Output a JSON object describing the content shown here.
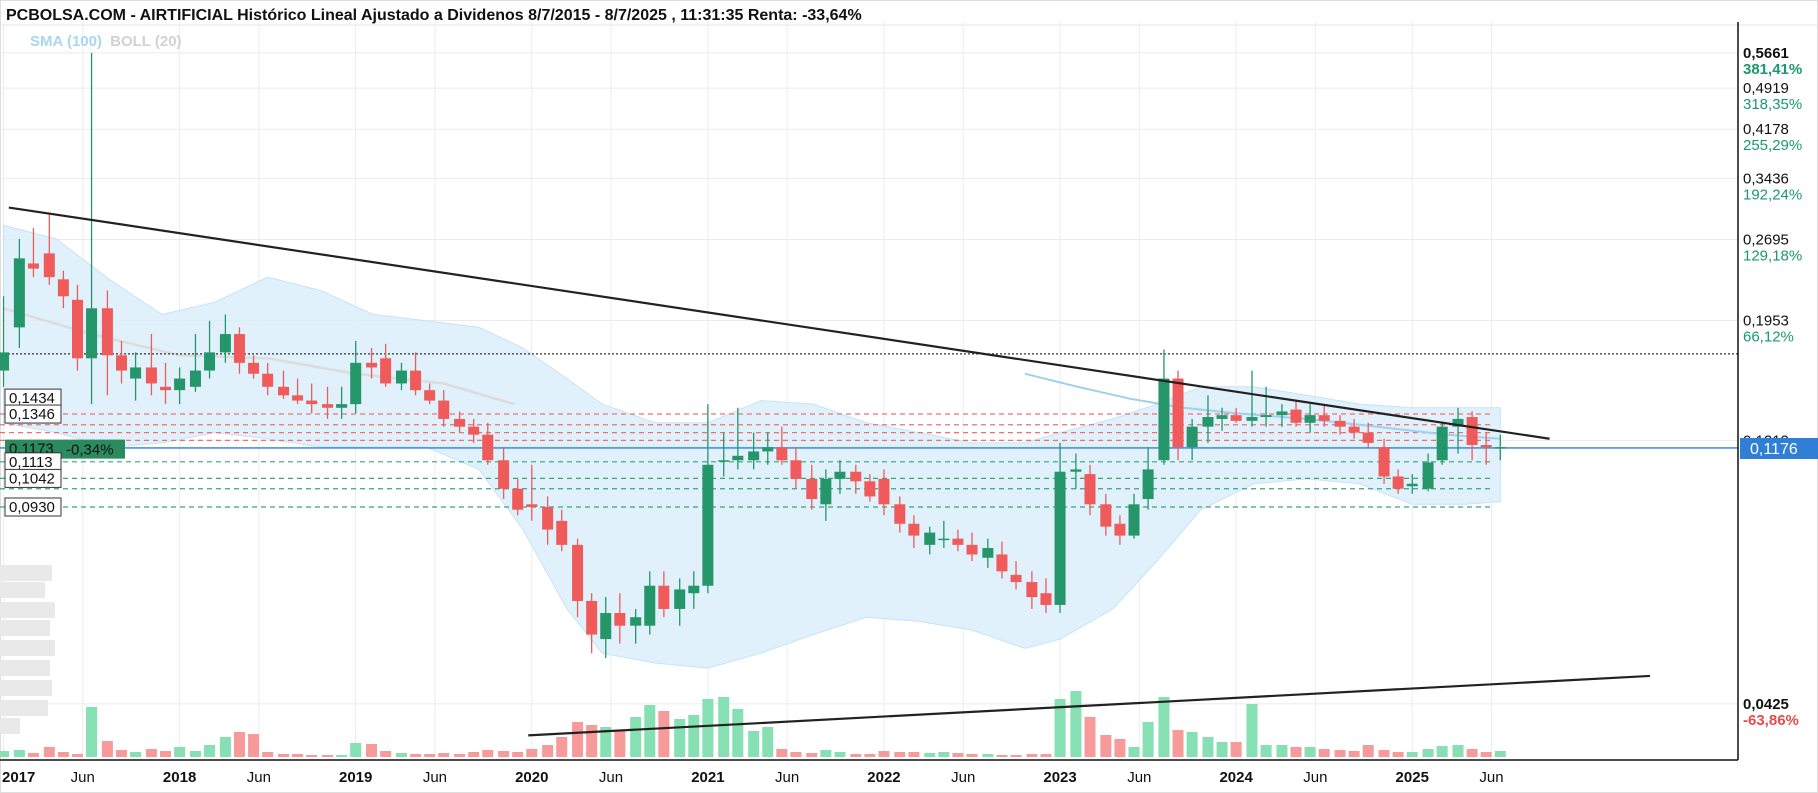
{
  "header": {
    "title": "PCBOLSA.COM - AIRTIFICIAL Histórico Lineal Ajustado a Dividenos 8/7/2015 - 8/7/2025 , 11:31:35 Renta: -33,64%",
    "legend_sma": "SMA (100)",
    "legend_boll": "BOLL (20)"
  },
  "chart_data": {
    "type": "candlestick",
    "y_scale": "log",
    "ylim": [
      0.034,
      0.64
    ],
    "xlim": [
      2016.98,
      2026.85
    ],
    "y_ticks": [
      {
        "value": "0,5661",
        "pct": "381,41%",
        "pct_color": "#1a9a6c",
        "bold": true
      },
      {
        "value": "0,4919",
        "pct": "318,35%",
        "pct_color": "#1a9a6c"
      },
      {
        "value": "0,4178",
        "pct": "255,29%",
        "pct_color": "#1a9a6c"
      },
      {
        "value": "0,3436",
        "pct": "192,24%",
        "pct_color": "#1a9a6c"
      },
      {
        "value": "0,2695",
        "pct": "129,18%",
        "pct_color": "#1a9a6c"
      },
      {
        "value": "0,1953",
        "pct": "66,12%",
        "pct_color": "#1a9a6c"
      },
      {
        "value": "0,1212",
        "pct": "",
        "pct_color": "#1a9a6c"
      },
      {
        "value": "0,0425",
        "pct": "-63,86%",
        "pct_color": "#e84b4b",
        "bold": true
      }
    ],
    "x_ticks": [
      {
        "x": 2017.0,
        "label": "2017",
        "year": true
      },
      {
        "x": 2017.45,
        "label": "Jun",
        "year": false
      },
      {
        "x": 2018.0,
        "label": "2018",
        "year": true
      },
      {
        "x": 2018.45,
        "label": "Jun",
        "year": false
      },
      {
        "x": 2019.0,
        "label": "2019",
        "year": true
      },
      {
        "x": 2019.45,
        "label": "Jun",
        "year": false
      },
      {
        "x": 2020.0,
        "label": "2020",
        "year": true
      },
      {
        "x": 2020.45,
        "label": "Jun",
        "year": false
      },
      {
        "x": 2021.0,
        "label": "2021",
        "year": true
      },
      {
        "x": 2021.45,
        "label": "Jun",
        "year": false
      },
      {
        "x": 2022.0,
        "label": "2022",
        "year": true
      },
      {
        "x": 2022.45,
        "label": "Jun",
        "year": false
      },
      {
        "x": 2023.0,
        "label": "2023",
        "year": true
      },
      {
        "x": 2023.45,
        "label": "Jun",
        "year": false
      },
      {
        "x": 2024.0,
        "label": "2024",
        "year": true
      },
      {
        "x": 2024.45,
        "label": "Jun",
        "year": false
      },
      {
        "x": 2025.0,
        "label": "2025",
        "year": true
      },
      {
        "x": 2025.45,
        "label": "Jun",
        "year": false
      }
    ],
    "last_price": "0,1176",
    "left_labels": {
      "l1": "0,1434",
      "l2": "0,1346",
      "l3": "0,1173",
      "change": "-0,34%",
      "l4": "0,1113",
      "l5": "0,1042",
      "l6": "0,0930"
    },
    "dotted_line": 0.171,
    "red_dashed_levels": [
      0.1346,
      0.129,
      0.125,
      0.1212
    ],
    "green_dashed_levels": [
      0.1113,
      0.1042,
      0.1,
      0.093
    ],
    "trendlines": [
      {
        "x1": 2017.03,
        "y1": 0.306,
        "x2": 2025.78,
        "y2": 0.122
      },
      {
        "x1": 2019.98,
        "y1": 0.0375,
        "x2": 2026.35,
        "y2": 0.0475
      }
    ],
    "candles": [
      {
        "x": 2017.0,
        "o": 0.16,
        "h": 0.215,
        "l": 0.15,
        "c": 0.172
      },
      {
        "x": 2017.09,
        "o": 0.19,
        "h": 0.27,
        "l": 0.175,
        "c": 0.25
      },
      {
        "x": 2017.17,
        "o": 0.245,
        "h": 0.282,
        "l": 0.232,
        "c": 0.24
      },
      {
        "x": 2017.26,
        "o": 0.255,
        "h": 0.3,
        "l": 0.225,
        "c": 0.232
      },
      {
        "x": 2017.34,
        "o": 0.23,
        "h": 0.238,
        "l": 0.205,
        "c": 0.215
      },
      {
        "x": 2017.42,
        "o": 0.212,
        "h": 0.225,
        "l": 0.16,
        "c": 0.168
      },
      {
        "x": 2017.5,
        "o": 0.168,
        "h": 0.566,
        "l": 0.14,
        "c": 0.205
      },
      {
        "x": 2017.59,
        "o": 0.205,
        "h": 0.22,
        "l": 0.145,
        "c": 0.17
      },
      {
        "x": 2017.67,
        "o": 0.17,
        "h": 0.18,
        "l": 0.152,
        "c": 0.16
      },
      {
        "x": 2017.75,
        "o": 0.155,
        "h": 0.172,
        "l": 0.142,
        "c": 0.162
      },
      {
        "x": 2017.84,
        "o": 0.162,
        "h": 0.185,
        "l": 0.145,
        "c": 0.152
      },
      {
        "x": 2017.92,
        "o": 0.15,
        "h": 0.165,
        "l": 0.14,
        "c": 0.148
      },
      {
        "x": 2018.0,
        "o": 0.148,
        "h": 0.162,
        "l": 0.14,
        "c": 0.155
      },
      {
        "x": 2018.09,
        "o": 0.15,
        "h": 0.185,
        "l": 0.147,
        "c": 0.16
      },
      {
        "x": 2018.17,
        "o": 0.16,
        "h": 0.195,
        "l": 0.155,
        "c": 0.172
      },
      {
        "x": 2018.26,
        "o": 0.172,
        "h": 0.2,
        "l": 0.165,
        "c": 0.185
      },
      {
        "x": 2018.34,
        "o": 0.185,
        "h": 0.19,
        "l": 0.158,
        "c": 0.165
      },
      {
        "x": 2018.42,
        "o": 0.165,
        "h": 0.17,
        "l": 0.155,
        "c": 0.158
      },
      {
        "x": 2018.5,
        "o": 0.158,
        "h": 0.165,
        "l": 0.145,
        "c": 0.15
      },
      {
        "x": 2018.59,
        "o": 0.15,
        "h": 0.16,
        "l": 0.143,
        "c": 0.145
      },
      {
        "x": 2018.67,
        "o": 0.145,
        "h": 0.155,
        "l": 0.14,
        "c": 0.142
      },
      {
        "x": 2018.75,
        "o": 0.142,
        "h": 0.152,
        "l": 0.135,
        "c": 0.14
      },
      {
        "x": 2018.84,
        "o": 0.14,
        "h": 0.15,
        "l": 0.132,
        "c": 0.138
      },
      {
        "x": 2018.92,
        "o": 0.138,
        "h": 0.15,
        "l": 0.132,
        "c": 0.14
      },
      {
        "x": 2019.0,
        "o": 0.14,
        "h": 0.18,
        "l": 0.135,
        "c": 0.165
      },
      {
        "x": 2019.09,
        "o": 0.165,
        "h": 0.175,
        "l": 0.155,
        "c": 0.162
      },
      {
        "x": 2019.17,
        "o": 0.168,
        "h": 0.178,
        "l": 0.15,
        "c": 0.152
      },
      {
        "x": 2019.26,
        "o": 0.152,
        "h": 0.165,
        "l": 0.148,
        "c": 0.16
      },
      {
        "x": 2019.34,
        "o": 0.16,
        "h": 0.172,
        "l": 0.145,
        "c": 0.148
      },
      {
        "x": 2019.42,
        "o": 0.148,
        "h": 0.152,
        "l": 0.14,
        "c": 0.142
      },
      {
        "x": 2019.5,
        "o": 0.142,
        "h": 0.148,
        "l": 0.128,
        "c": 0.132
      },
      {
        "x": 2019.59,
        "o": 0.132,
        "h": 0.136,
        "l": 0.125,
        "c": 0.128
      },
      {
        "x": 2019.67,
        "o": 0.128,
        "h": 0.132,
        "l": 0.12,
        "c": 0.124
      },
      {
        "x": 2019.75,
        "o": 0.124,
        "h": 0.13,
        "l": 0.11,
        "c": 0.112
      },
      {
        "x": 2019.84,
        "o": 0.112,
        "h": 0.118,
        "l": 0.096,
        "c": 0.1
      },
      {
        "x": 2019.92,
        "o": 0.1,
        "h": 0.104,
        "l": 0.09,
        "c": 0.092
      },
      {
        "x": 2020.0,
        "o": 0.094,
        "h": 0.11,
        "l": 0.088,
        "c": 0.093
      },
      {
        "x": 2020.09,
        "o": 0.093,
        "h": 0.097,
        "l": 0.08,
        "c": 0.085
      },
      {
        "x": 2020.17,
        "o": 0.088,
        "h": 0.092,
        "l": 0.078,
        "c": 0.08
      },
      {
        "x": 2020.26,
        "o": 0.08,
        "h": 0.082,
        "l": 0.06,
        "c": 0.064
      },
      {
        "x": 2020.34,
        "o": 0.064,
        "h": 0.066,
        "l": 0.052,
        "c": 0.056
      },
      {
        "x": 2020.42,
        "o": 0.055,
        "h": 0.065,
        "l": 0.051,
        "c": 0.061
      },
      {
        "x": 2020.5,
        "o": 0.061,
        "h": 0.066,
        "l": 0.054,
        "c": 0.058
      },
      {
        "x": 2020.59,
        "o": 0.058,
        "h": 0.062,
        "l": 0.054,
        "c": 0.06
      },
      {
        "x": 2020.67,
        "o": 0.058,
        "h": 0.072,
        "l": 0.056,
        "c": 0.068
      },
      {
        "x": 2020.75,
        "o": 0.068,
        "h": 0.072,
        "l": 0.06,
        "c": 0.062
      },
      {
        "x": 2020.84,
        "o": 0.062,
        "h": 0.07,
        "l": 0.058,
        "c": 0.067
      },
      {
        "x": 2020.92,
        "o": 0.066,
        "h": 0.072,
        "l": 0.062,
        "c": 0.068
      },
      {
        "x": 2021.0,
        "o": 0.068,
        "h": 0.14,
        "l": 0.066,
        "c": 0.11
      },
      {
        "x": 2021.09,
        "o": 0.112,
        "h": 0.125,
        "l": 0.105,
        "c": 0.112
      },
      {
        "x": 2021.17,
        "o": 0.112,
        "h": 0.138,
        "l": 0.108,
        "c": 0.114
      },
      {
        "x": 2021.26,
        "o": 0.112,
        "h": 0.125,
        "l": 0.108,
        "c": 0.116
      },
      {
        "x": 2021.34,
        "o": 0.116,
        "h": 0.125,
        "l": 0.11,
        "c": 0.118
      },
      {
        "x": 2021.42,
        "o": 0.118,
        "h": 0.128,
        "l": 0.11,
        "c": 0.112
      },
      {
        "x": 2021.5,
        "o": 0.112,
        "h": 0.118,
        "l": 0.1,
        "c": 0.104
      },
      {
        "x": 2021.59,
        "o": 0.104,
        "h": 0.11,
        "l": 0.092,
        "c": 0.096
      },
      {
        "x": 2021.67,
        "o": 0.094,
        "h": 0.108,
        "l": 0.088,
        "c": 0.104
      },
      {
        "x": 2021.75,
        "o": 0.104,
        "h": 0.112,
        "l": 0.098,
        "c": 0.107
      },
      {
        "x": 2021.84,
        "o": 0.107,
        "h": 0.11,
        "l": 0.098,
        "c": 0.103
      },
      {
        "x": 2021.92,
        "o": 0.103,
        "h": 0.106,
        "l": 0.095,
        "c": 0.097
      },
      {
        "x": 2022.0,
        "o": 0.104,
        "h": 0.108,
        "l": 0.09,
        "c": 0.094
      },
      {
        "x": 2022.09,
        "o": 0.094,
        "h": 0.097,
        "l": 0.084,
        "c": 0.087
      },
      {
        "x": 2022.17,
        "o": 0.087,
        "h": 0.09,
        "l": 0.079,
        "c": 0.083
      },
      {
        "x": 2022.26,
        "o": 0.08,
        "h": 0.086,
        "l": 0.077,
        "c": 0.084
      },
      {
        "x": 2022.34,
        "o": 0.082,
        "h": 0.088,
        "l": 0.079,
        "c": 0.082
      },
      {
        "x": 2022.42,
        "o": 0.082,
        "h": 0.085,
        "l": 0.078,
        "c": 0.08
      },
      {
        "x": 2022.5,
        "o": 0.08,
        "h": 0.084,
        "l": 0.075,
        "c": 0.077
      },
      {
        "x": 2022.59,
        "o": 0.076,
        "h": 0.082,
        "l": 0.073,
        "c": 0.079
      },
      {
        "x": 2022.67,
        "o": 0.077,
        "h": 0.081,
        "l": 0.07,
        "c": 0.072
      },
      {
        "x": 2022.75,
        "o": 0.071,
        "h": 0.075,
        "l": 0.067,
        "c": 0.069
      },
      {
        "x": 2022.84,
        "o": 0.069,
        "h": 0.072,
        "l": 0.062,
        "c": 0.065
      },
      {
        "x": 2022.92,
        "o": 0.066,
        "h": 0.07,
        "l": 0.061,
        "c": 0.063
      },
      {
        "x": 2023.0,
        "o": 0.063,
        "h": 0.12,
        "l": 0.061,
        "c": 0.107
      },
      {
        "x": 2023.09,
        "o": 0.107,
        "h": 0.115,
        "l": 0.1,
        "c": 0.108
      },
      {
        "x": 2023.17,
        "o": 0.106,
        "h": 0.11,
        "l": 0.09,
        "c": 0.094
      },
      {
        "x": 2023.26,
        "o": 0.094,
        "h": 0.098,
        "l": 0.083,
        "c": 0.086
      },
      {
        "x": 2023.34,
        "o": 0.087,
        "h": 0.09,
        "l": 0.08,
        "c": 0.083
      },
      {
        "x": 2023.42,
        "o": 0.083,
        "h": 0.098,
        "l": 0.082,
        "c": 0.094
      },
      {
        "x": 2023.5,
        "o": 0.096,
        "h": 0.118,
        "l": 0.092,
        "c": 0.108
      },
      {
        "x": 2023.59,
        "o": 0.112,
        "h": 0.174,
        "l": 0.11,
        "c": 0.155
      },
      {
        "x": 2023.67,
        "o": 0.155,
        "h": 0.16,
        "l": 0.112,
        "c": 0.118
      },
      {
        "x": 2023.75,
        "o": 0.118,
        "h": 0.132,
        "l": 0.112,
        "c": 0.128
      },
      {
        "x": 2023.84,
        "o": 0.128,
        "h": 0.145,
        "l": 0.12,
        "c": 0.133
      },
      {
        "x": 2023.92,
        "o": 0.132,
        "h": 0.138,
        "l": 0.126,
        "c": 0.134
      },
      {
        "x": 2024.0,
        "o": 0.134,
        "h": 0.138,
        "l": 0.13,
        "c": 0.131
      },
      {
        "x": 2024.09,
        "o": 0.131,
        "h": 0.16,
        "l": 0.128,
        "c": 0.133
      },
      {
        "x": 2024.17,
        "o": 0.133,
        "h": 0.15,
        "l": 0.128,
        "c": 0.134
      },
      {
        "x": 2024.26,
        "o": 0.134,
        "h": 0.14,
        "l": 0.128,
        "c": 0.136
      },
      {
        "x": 2024.34,
        "o": 0.137,
        "h": 0.142,
        "l": 0.128,
        "c": 0.13
      },
      {
        "x": 2024.42,
        "o": 0.13,
        "h": 0.14,
        "l": 0.125,
        "c": 0.134
      },
      {
        "x": 2024.5,
        "o": 0.134,
        "h": 0.14,
        "l": 0.128,
        "c": 0.131
      },
      {
        "x": 2024.59,
        "o": 0.131,
        "h": 0.134,
        "l": 0.124,
        "c": 0.128
      },
      {
        "x": 2024.67,
        "o": 0.128,
        "h": 0.132,
        "l": 0.122,
        "c": 0.125
      },
      {
        "x": 2024.75,
        "o": 0.125,
        "h": 0.13,
        "l": 0.118,
        "c": 0.12
      },
      {
        "x": 2024.84,
        "o": 0.118,
        "h": 0.122,
        "l": 0.102,
        "c": 0.105
      },
      {
        "x": 2024.92,
        "o": 0.105,
        "h": 0.108,
        "l": 0.098,
        "c": 0.1
      },
      {
        "x": 2025.0,
        "o": 0.101,
        "h": 0.106,
        "l": 0.098,
        "c": 0.102
      },
      {
        "x": 2025.09,
        "o": 0.1,
        "h": 0.115,
        "l": 0.099,
        "c": 0.111
      },
      {
        "x": 2025.17,
        "o": 0.112,
        "h": 0.13,
        "l": 0.11,
        "c": 0.128
      },
      {
        "x": 2025.26,
        "o": 0.128,
        "h": 0.138,
        "l": 0.115,
        "c": 0.132
      },
      {
        "x": 2025.34,
        "o": 0.133,
        "h": 0.136,
        "l": 0.112,
        "c": 0.119
      },
      {
        "x": 2025.42,
        "o": 0.119,
        "h": 0.125,
        "l": 0.11,
        "c": 0.118
      },
      {
        "x": 2025.5,
        "o": 0.118,
        "h": 0.124,
        "l": 0.112,
        "c": 0.118
      }
    ],
    "bollinger_band": [
      [
        2017.0,
        0.285,
        0.13
      ],
      [
        2017.3,
        0.27,
        0.125
      ],
      [
        2017.6,
        0.23,
        0.118
      ],
      [
        2017.9,
        0.2,
        0.12
      ],
      [
        2018.2,
        0.21,
        0.125
      ],
      [
        2018.5,
        0.232,
        0.122
      ],
      [
        2018.8,
        0.22,
        0.118
      ],
      [
        2019.1,
        0.2,
        0.118
      ],
      [
        2019.4,
        0.195,
        0.118
      ],
      [
        2019.7,
        0.19,
        0.108
      ],
      [
        2019.95,
        0.175,
        0.085
      ],
      [
        2020.2,
        0.155,
        0.062
      ],
      [
        2020.4,
        0.14,
        0.052
      ],
      [
        2020.7,
        0.13,
        0.05
      ],
      [
        2021.0,
        0.13,
        0.049
      ],
      [
        2021.3,
        0.142,
        0.052
      ],
      [
        2021.6,
        0.14,
        0.056
      ],
      [
        2021.9,
        0.13,
        0.06
      ],
      [
        2022.2,
        0.125,
        0.059
      ],
      [
        2022.5,
        0.12,
        0.057
      ],
      [
        2022.8,
        0.12,
        0.053
      ],
      [
        2023.0,
        0.125,
        0.055
      ],
      [
        2023.3,
        0.132,
        0.062
      ],
      [
        2023.55,
        0.14,
        0.075
      ],
      [
        2023.8,
        0.15,
        0.092
      ],
      [
        2024.1,
        0.15,
        0.102
      ],
      [
        2024.4,
        0.145,
        0.104
      ],
      [
        2024.7,
        0.14,
        0.102
      ],
      [
        2025.0,
        0.138,
        0.094
      ],
      [
        2025.3,
        0.138,
        0.094
      ],
      [
        2025.5,
        0.138,
        0.095
      ]
    ],
    "boll_mid": [
      [
        2017.0,
        0.205
      ],
      [
        2017.5,
        0.185
      ],
      [
        2018.0,
        0.17
      ],
      [
        2018.5,
        0.168
      ],
      [
        2019.0,
        0.158
      ],
      [
        2019.5,
        0.152
      ],
      [
        2019.9,
        0.14
      ]
    ],
    "sma": [
      [
        2022.8,
        0.158
      ],
      [
        2023.1,
        0.15
      ],
      [
        2023.4,
        0.143
      ],
      [
        2023.7,
        0.138
      ],
      [
        2024.0,
        0.135
      ],
      [
        2024.4,
        0.132
      ],
      [
        2024.8,
        0.128
      ],
      [
        2025.2,
        0.124
      ],
      [
        2025.5,
        0.122
      ]
    ],
    "volume_max": 1.0,
    "volumes": [
      0.06,
      0.07,
      0.04,
      0.1,
      0.05,
      0.03,
      0.5,
      0.16,
      0.07,
      0.05,
      0.08,
      0.06,
      0.1,
      0.06,
      0.12,
      0.2,
      0.25,
      0.23,
      0.05,
      0.03,
      0.03,
      0.02,
      0.02,
      0.02,
      0.14,
      0.13,
      0.06,
      0.04,
      0.03,
      0.03,
      0.04,
      0.03,
      0.05,
      0.07,
      0.06,
      0.05,
      0.08,
      0.12,
      0.2,
      0.35,
      0.32,
      0.3,
      0.27,
      0.4,
      0.52,
      0.46,
      0.38,
      0.42,
      0.58,
      0.6,
      0.48,
      0.26,
      0.3,
      0.08,
      0.05,
      0.04,
      0.07,
      0.05,
      0.03,
      0.03,
      0.06,
      0.05,
      0.05,
      0.04,
      0.05,
      0.04,
      0.03,
      0.03,
      0.02,
      0.02,
      0.03,
      0.03,
      0.58,
      0.66,
      0.4,
      0.22,
      0.18,
      0.1,
      0.35,
      0.6,
      0.27,
      0.25,
      0.2,
      0.15,
      0.15,
      0.53,
      0.12,
      0.12,
      0.1,
      0.1,
      0.08,
      0.07,
      0.06,
      0.12,
      0.07,
      0.05,
      0.05,
      0.08,
      0.11,
      0.12,
      0.08,
      0.05,
      0.06
    ]
  }
}
